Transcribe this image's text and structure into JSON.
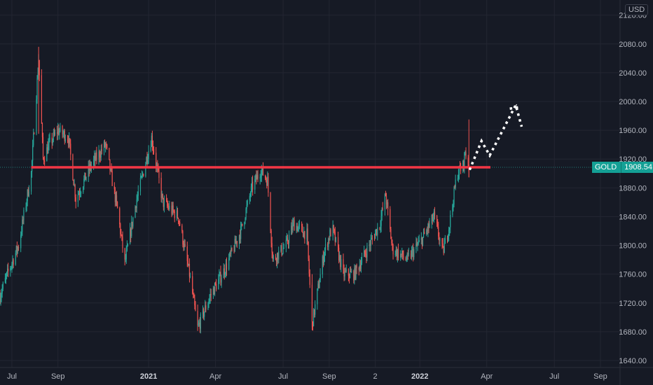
{
  "chart_data": {
    "type": "candlestick",
    "symbol": "GOLD",
    "currency": "USD",
    "last_price": "1908.54",
    "ylim": [
      1630,
      2145
    ],
    "y_ticks": [
      "1640.00",
      "1680.00",
      "1720.00",
      "1760.00",
      "1800.00",
      "1840.00",
      "1880.00",
      "1920.00",
      "1960.00",
      "2000.00",
      "2040.00",
      "2080.00",
      "2120.00"
    ],
    "x_ticks": [
      "Jul",
      "Sep",
      "2021",
      "Apr",
      "Jul",
      "Sep",
      "2",
      "2022",
      "Apr",
      "Jul",
      "Sep"
    ],
    "x_ticks_bold": [
      "2021",
      "2022"
    ],
    "price_path": [
      {
        "date": "2020-06-15",
        "price": 1730
      },
      {
        "date": "2020-06-25",
        "price": 1760
      },
      {
        "date": "2020-07-10",
        "price": 1800
      },
      {
        "date": "2020-07-27",
        "price": 1900
      },
      {
        "date": "2020-08-06",
        "price": 2060
      },
      {
        "date": "2020-08-12",
        "price": 1920
      },
      {
        "date": "2020-08-20",
        "price": 1940
      },
      {
        "date": "2020-09-01",
        "price": 1960
      },
      {
        "date": "2020-09-15",
        "price": 1950
      },
      {
        "date": "2020-09-25",
        "price": 1865
      },
      {
        "date": "2020-10-15",
        "price": 1910
      },
      {
        "date": "2020-11-04",
        "price": 1940
      },
      {
        "date": "2020-11-20",
        "price": 1850
      },
      {
        "date": "2020-11-30",
        "price": 1775
      },
      {
        "date": "2020-12-15",
        "price": 1860
      },
      {
        "date": "2021-01-05",
        "price": 1950
      },
      {
        "date": "2021-01-20",
        "price": 1860
      },
      {
        "date": "2021-02-10",
        "price": 1840
      },
      {
        "date": "2021-02-25",
        "price": 1760
      },
      {
        "date": "2021-03-08",
        "price": 1685
      },
      {
        "date": "2021-03-25",
        "price": 1730
      },
      {
        "date": "2021-04-15",
        "price": 1770
      },
      {
        "date": "2021-05-05",
        "price": 1820
      },
      {
        "date": "2021-05-20",
        "price": 1880
      },
      {
        "date": "2021-06-01",
        "price": 1905
      },
      {
        "date": "2021-06-10",
        "price": 1890
      },
      {
        "date": "2021-06-17",
        "price": 1780
      },
      {
        "date": "2021-07-05",
        "price": 1800
      },
      {
        "date": "2021-07-15",
        "price": 1830
      },
      {
        "date": "2021-08-02",
        "price": 1815
      },
      {
        "date": "2021-08-09",
        "price": 1690
      },
      {
        "date": "2021-08-25",
        "price": 1790
      },
      {
        "date": "2021-09-05",
        "price": 1825
      },
      {
        "date": "2021-09-20",
        "price": 1760
      },
      {
        "date": "2021-10-05",
        "price": 1760
      },
      {
        "date": "2021-10-20",
        "price": 1790
      },
      {
        "date": "2021-11-08",
        "price": 1830
      },
      {
        "date": "2021-11-16",
        "price": 1870
      },
      {
        "date": "2021-11-25",
        "price": 1795
      },
      {
        "date": "2021-12-15",
        "price": 1780
      },
      {
        "date": "2022-01-05",
        "price": 1810
      },
      {
        "date": "2022-01-20",
        "price": 1840
      },
      {
        "date": "2022-02-01",
        "price": 1790
      },
      {
        "date": "2022-02-10",
        "price": 1830
      },
      {
        "date": "2022-02-20",
        "price": 1900
      },
      {
        "date": "2022-02-28",
        "price": 1910
      },
      {
        "date": "2022-03-03",
        "price": 1930
      },
      {
        "date": "2022-03-08",
        "price": 1908.54
      }
    ],
    "key_level": {
      "price": 1908.54,
      "from": "2020-07-27",
      "to": "2022-04-06",
      "color": "#f23645"
    },
    "projection_path": [
      {
        "date": "2022-03-09",
        "price": 1905
      },
      {
        "date": "2022-03-25",
        "price": 1945
      },
      {
        "date": "2022-04-05",
        "price": 1925
      },
      {
        "date": "2022-05-10",
        "price": 1995
      },
      {
        "date": "2022-05-18",
        "price": 1965
      }
    ],
    "projection_head": [
      {
        "date": "2022-05-02",
        "price": 1990
      },
      {
        "date": "2022-05-14",
        "price": 1992
      }
    ],
    "colors": {
      "background": "#161a25",
      "grid": "#232632",
      "up": "#26a69a",
      "down": "#ef5350",
      "axis_text": "#b2b5be",
      "level_line": "#f23645",
      "projection": "#ffffff"
    },
    "grid": true
  }
}
